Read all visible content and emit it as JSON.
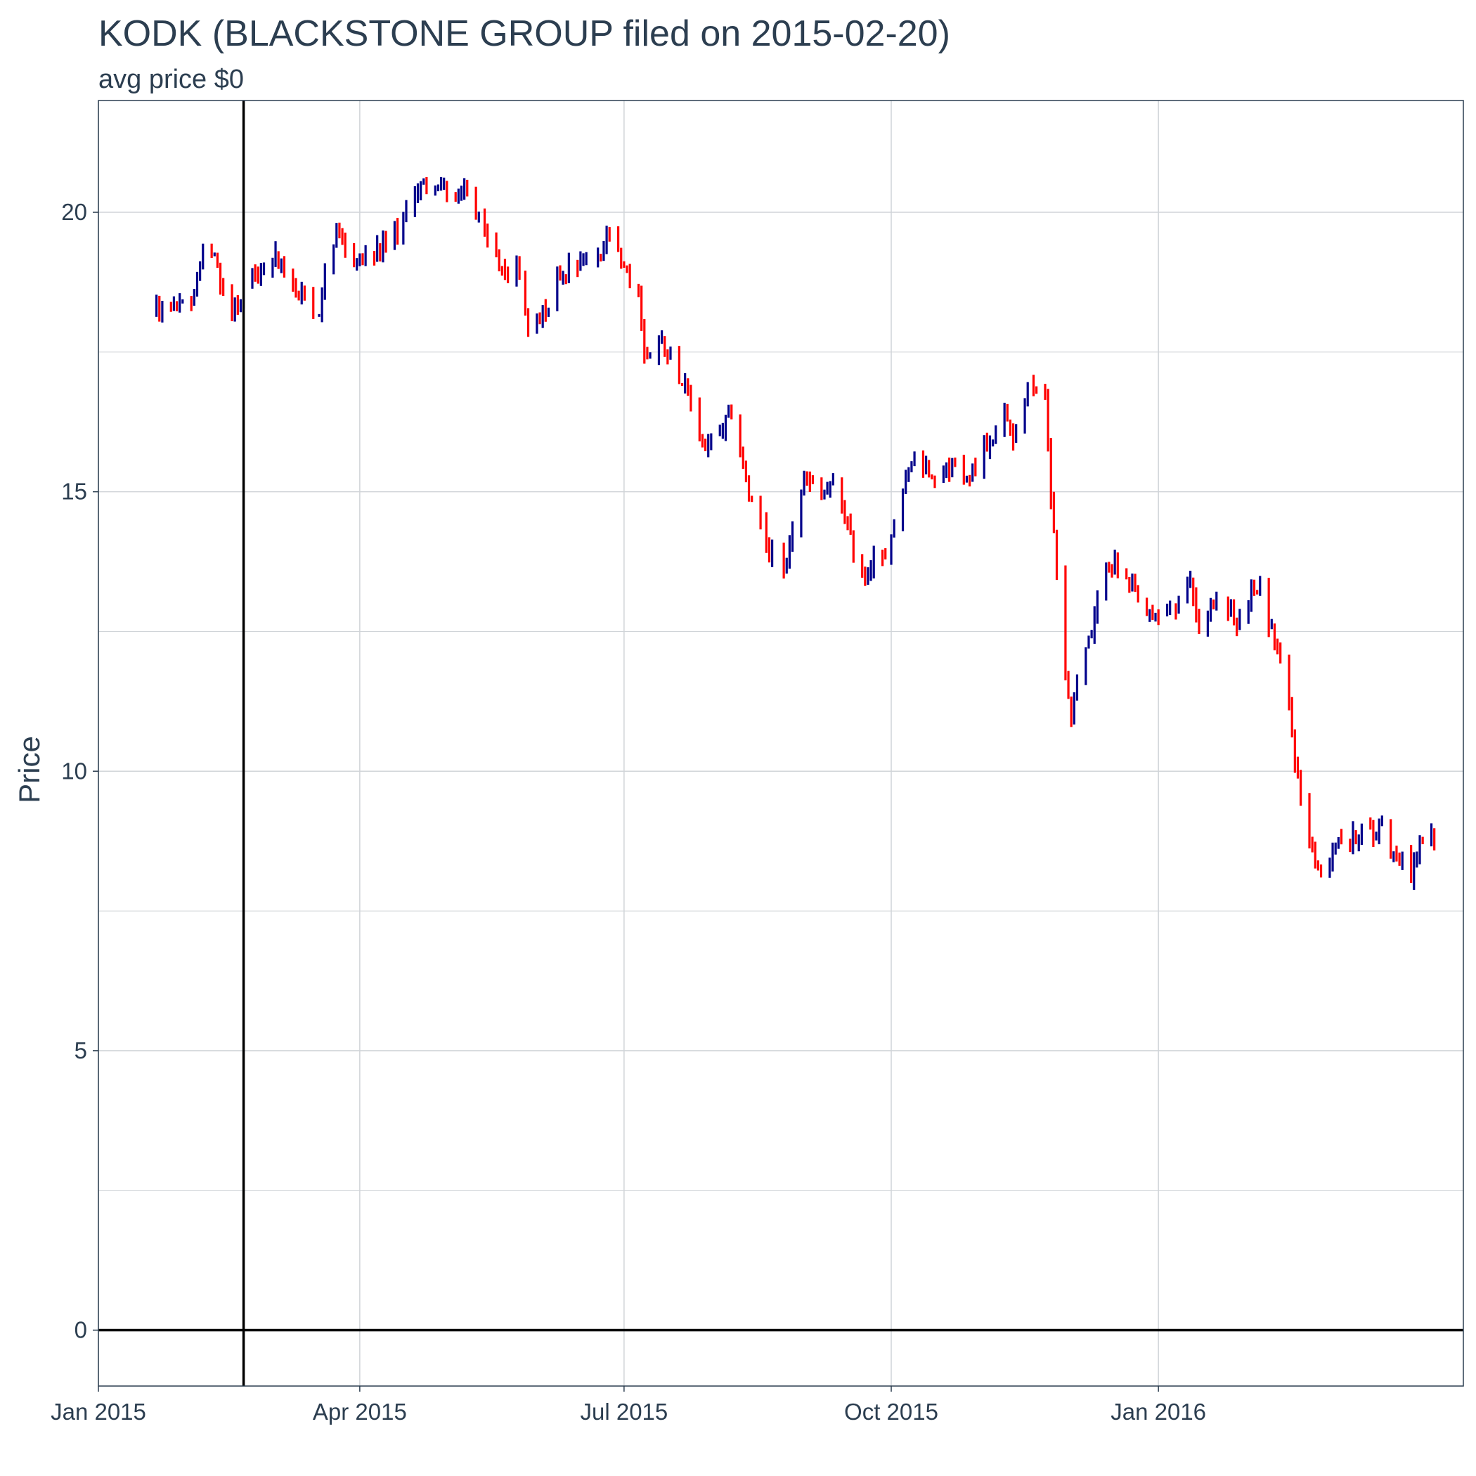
{
  "chart_data": {
    "type": "candlestick",
    "title": "KODK (BLACKSTONE GROUP filed on 2015-02-20)",
    "subtitle": "avg price $0",
    "xlabel": "",
    "ylabel": "Price",
    "ylim": [
      -1,
      22
    ],
    "yticks": [
      0,
      5,
      10,
      15,
      20
    ],
    "xlim": [
      "2015-01-01",
      "2016-04-15"
    ],
    "xticks": [
      {
        "date": "2015-01-01",
        "label": "Jan 2015"
      },
      {
        "date": "2015-04-01",
        "label": "Apr 2015"
      },
      {
        "date": "2015-07-01",
        "label": "Jul 2015"
      },
      {
        "date": "2015-10-01",
        "label": "Oct 2015"
      },
      {
        "date": "2016-01-01",
        "label": "Jan 2016"
      }
    ],
    "reference_lines": {
      "vertical_date": "2015-02-20",
      "horizontal_value": 0
    },
    "colors": {
      "up": "#00008b",
      "down": "#ff0000",
      "reference": "#000000",
      "grid": "#d0d4d8",
      "border": "#2c3e50",
      "text": "#2c3e50"
    },
    "grid": true,
    "legend": "none",
    "anchors": [
      [
        "2015-01-21",
        18.3
      ],
      [
        "2015-01-28",
        18.2
      ],
      [
        "2015-02-03",
        18.5
      ],
      [
        "2015-02-06",
        19.3
      ],
      [
        "2015-02-10",
        19.3
      ],
      [
        "2015-02-12",
        18.7
      ],
      [
        "2015-02-16",
        18.3
      ],
      [
        "2015-02-19",
        18.5
      ],
      [
        "2015-02-24",
        18.8
      ],
      [
        "2015-03-02",
        19.3
      ],
      [
        "2015-03-06",
        18.9
      ],
      [
        "2015-03-10",
        18.6
      ],
      [
        "2015-03-13",
        18.4
      ],
      [
        "2015-03-18",
        18.2
      ],
      [
        "2015-03-20",
        19.1
      ],
      [
        "2015-03-24",
        19.6
      ],
      [
        "2015-03-27",
        19.3
      ],
      [
        "2015-03-31",
        19.1
      ],
      [
        "2015-04-06",
        19.2
      ],
      [
        "2015-04-14",
        19.7
      ],
      [
        "2015-04-20",
        20.4
      ],
      [
        "2015-04-28",
        20.6
      ],
      [
        "2015-05-04",
        20.1
      ],
      [
        "2015-05-08",
        20.4
      ],
      [
        "2015-05-14",
        19.5
      ],
      [
        "2015-05-20",
        19.0
      ],
      [
        "2015-05-26",
        18.9
      ],
      [
        "2015-05-29",
        18.0
      ],
      [
        "2015-06-03",
        18.2
      ],
      [
        "2015-06-08",
        18.8
      ],
      [
        "2015-06-12",
        19.1
      ],
      [
        "2015-06-17",
        19.2
      ],
      [
        "2015-06-22",
        19.1
      ],
      [
        "2015-06-26",
        19.6
      ],
      [
        "2015-06-30",
        19.0
      ],
      [
        "2015-07-02",
        18.8
      ],
      [
        "2015-07-06",
        18.6
      ],
      [
        "2015-07-08",
        17.4
      ],
      [
        "2015-07-14",
        17.7
      ],
      [
        "2015-07-20",
        17.1
      ],
      [
        "2015-07-24",
        16.6
      ],
      [
        "2015-07-28",
        15.8
      ],
      [
        "2015-08-03",
        16.0
      ],
      [
        "2015-08-06",
        16.3
      ],
      [
        "2015-08-10",
        15.8
      ],
      [
        "2015-08-13",
        14.9
      ],
      [
        "2015-08-18",
        14.2
      ],
      [
        "2015-08-21",
        13.8
      ],
      [
        "2015-08-26",
        13.7
      ],
      [
        "2015-08-28",
        14.4
      ],
      [
        "2015-09-01",
        15.2
      ],
      [
        "2015-09-07",
        14.9
      ],
      [
        "2015-09-11",
        15.1
      ],
      [
        "2015-09-15",
        14.6
      ],
      [
        "2015-09-18",
        13.9
      ],
      [
        "2015-09-22",
        13.5
      ],
      [
        "2015-09-25",
        13.9
      ],
      [
        "2015-09-29",
        13.7
      ],
      [
        "2015-10-02",
        14.5
      ],
      [
        "2015-10-06",
        15.3
      ],
      [
        "2015-10-09",
        15.6
      ],
      [
        "2015-10-14",
        15.4
      ],
      [
        "2015-10-19",
        15.3
      ],
      [
        "2015-10-22",
        15.5
      ],
      [
        "2015-10-26",
        15.2
      ],
      [
        "2015-10-30",
        15.5
      ],
      [
        "2015-11-04",
        16.0
      ],
      [
        "2015-11-09",
        16.4
      ],
      [
        "2015-11-12",
        16.0
      ],
      [
        "2015-11-16",
        16.6
      ],
      [
        "2015-11-18",
        17.0
      ],
      [
        "2015-11-23",
        16.6
      ],
      [
        "2015-11-25",
        15.0
      ],
      [
        "2015-11-30",
        11.7
      ],
      [
        "2015-12-02",
        11.0
      ],
      [
        "2015-12-05",
        12.0
      ],
      [
        "2015-12-09",
        12.4
      ],
      [
        "2015-12-14",
        13.8
      ],
      [
        "2015-12-18",
        13.6
      ],
      [
        "2015-12-23",
        13.2
      ],
      [
        "2015-12-29",
        12.7
      ],
      [
        "2016-01-04",
        12.9
      ],
      [
        "2016-01-08",
        13.1
      ],
      [
        "2016-01-12",
        13.4
      ],
      [
        "2016-01-15",
        12.6
      ],
      [
        "2016-01-20",
        13.0
      ],
      [
        "2016-01-25",
        12.9
      ],
      [
        "2016-01-28",
        12.6
      ],
      [
        "2016-02-02",
        13.3
      ],
      [
        "2016-02-05",
        13.2
      ],
      [
        "2016-02-08",
        12.7
      ],
      [
        "2016-02-11",
        12.1
      ],
      [
        "2016-02-15",
        11.1
      ],
      [
        "2016-02-18",
        9.8
      ],
      [
        "2016-02-22",
        8.8
      ],
      [
        "2016-02-25",
        8.2
      ],
      [
        "2016-02-29",
        8.5
      ],
      [
        "2016-03-03",
        8.9
      ],
      [
        "2016-03-07",
        8.7
      ],
      [
        "2016-03-11",
        9.0
      ],
      [
        "2016-03-15",
        8.8
      ],
      [
        "2016-03-18",
        9.2
      ],
      [
        "2016-03-22",
        8.5
      ],
      [
        "2016-03-28",
        8.2
      ],
      [
        "2016-04-01",
        8.8
      ],
      [
        "2016-04-05",
        8.8
      ]
    ]
  }
}
